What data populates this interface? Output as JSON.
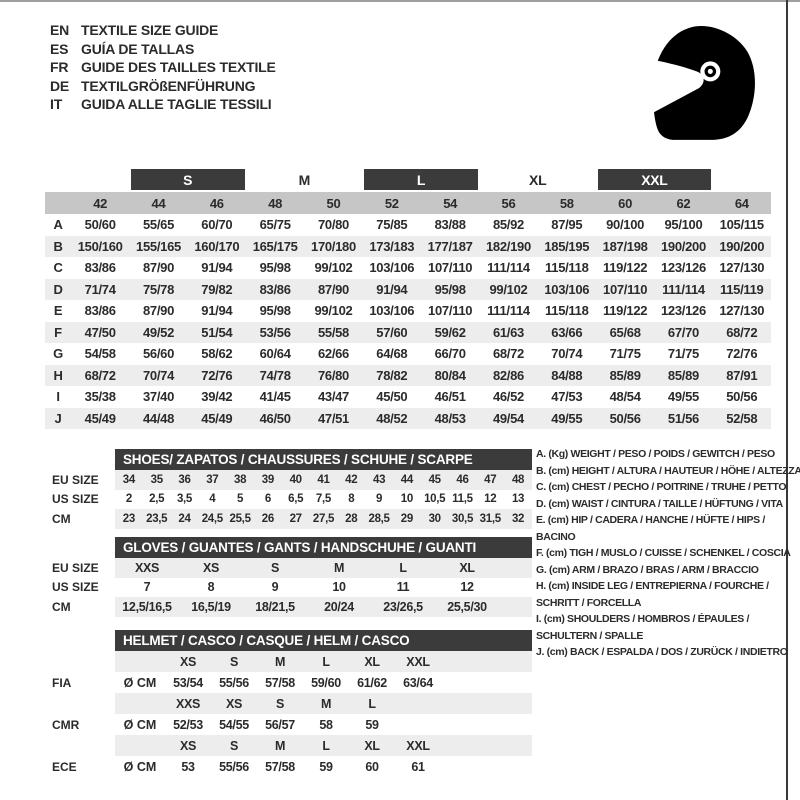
{
  "header": {
    "languages": [
      {
        "code": "EN",
        "text": "TEXTILE SIZE GUIDE"
      },
      {
        "code": "ES",
        "text": "GUÍA DE TALLAS"
      },
      {
        "code": "FR",
        "text": "GUIDE DES TAILLES TEXTILE"
      },
      {
        "code": "DE",
        "text": "TEXTILGRÖßENFÜHRUNG"
      },
      {
        "code": "IT",
        "text": "GUIDA ALLE TAGLIE TESSILI"
      }
    ],
    "icon": "racing-helmet"
  },
  "textile_table": {
    "size_groups": [
      {
        "label": "",
        "span": 1,
        "boxed": false
      },
      {
        "label": "S",
        "span": 2,
        "boxed": true
      },
      {
        "label": "M",
        "span": 2,
        "boxed": false
      },
      {
        "label": "L",
        "span": 2,
        "boxed": true
      },
      {
        "label": "XL",
        "span": 2,
        "boxed": false
      },
      {
        "label": "XXL",
        "span": 2,
        "boxed": true
      },
      {
        "label": "",
        "span": 1,
        "boxed": false
      }
    ],
    "columns": [
      "42",
      "44",
      "46",
      "48",
      "50",
      "52",
      "54",
      "56",
      "58",
      "60",
      "62",
      "64"
    ],
    "rows": [
      {
        "letter": "A",
        "values": [
          "50/60",
          "55/65",
          "60/70",
          "65/75",
          "70/80",
          "75/85",
          "83/88",
          "85/92",
          "87/95",
          "90/100",
          "95/100",
          "105/115"
        ]
      },
      {
        "letter": "B",
        "values": [
          "150/160",
          "155/165",
          "160/170",
          "165/175",
          "170/180",
          "173/183",
          "177/187",
          "182/190",
          "185/195",
          "187/198",
          "190/200",
          "190/200"
        ]
      },
      {
        "letter": "C",
        "values": [
          "83/86",
          "87/90",
          "91/94",
          "95/98",
          "99/102",
          "103/106",
          "107/110",
          "111/114",
          "115/118",
          "119/122",
          "123/126",
          "127/130"
        ]
      },
      {
        "letter": "D",
        "values": [
          "71/74",
          "75/78",
          "79/82",
          "83/86",
          "87/90",
          "91/94",
          "95/98",
          "99/102",
          "103/106",
          "107/110",
          "111/114",
          "115/119"
        ]
      },
      {
        "letter": "E",
        "values": [
          "83/86",
          "87/90",
          "91/94",
          "95/98",
          "99/102",
          "103/106",
          "107/110",
          "111/114",
          "115/118",
          "119/122",
          "123/126",
          "127/130"
        ]
      },
      {
        "letter": "F",
        "values": [
          "47/50",
          "49/52",
          "51/54",
          "53/56",
          "55/58",
          "57/60",
          "59/62",
          "61/63",
          "63/66",
          "65/68",
          "67/70",
          "68/72"
        ]
      },
      {
        "letter": "G",
        "values": [
          "54/58",
          "56/60",
          "58/62",
          "60/64",
          "62/66",
          "64/68",
          "66/70",
          "68/72",
          "70/74",
          "71/75",
          "71/75",
          "72/76"
        ]
      },
      {
        "letter": "H",
        "values": [
          "68/72",
          "70/74",
          "72/76",
          "74/78",
          "76/80",
          "78/82",
          "80/84",
          "82/86",
          "84/88",
          "85/89",
          "85/89",
          "87/91"
        ]
      },
      {
        "letter": "I",
        "values": [
          "35/38",
          "37/40",
          "39/42",
          "41/45",
          "43/47",
          "45/50",
          "46/51",
          "46/52",
          "47/53",
          "48/54",
          "49/55",
          "50/56"
        ]
      },
      {
        "letter": "J",
        "values": [
          "45/49",
          "44/48",
          "45/49",
          "46/50",
          "47/51",
          "48/52",
          "48/53",
          "49/54",
          "49/55",
          "50/56",
          "51/56",
          "52/58"
        ]
      }
    ]
  },
  "shoes_table": {
    "title": "SHOES/ ZAPATOS / CHAUSSURES / SCHUHE / SCARPE",
    "rows": [
      {
        "label": "EU SIZE",
        "shaded": true,
        "values": [
          "34",
          "35",
          "36",
          "37",
          "38",
          "39",
          "40",
          "41",
          "42",
          "43",
          "44",
          "45",
          "46",
          "47",
          "48"
        ]
      },
      {
        "label": "US SIZE",
        "shaded": false,
        "values": [
          "2",
          "2,5",
          "3,5",
          "4",
          "5",
          "6",
          "6,5",
          "7,5",
          "8",
          "9",
          "10",
          "10,5",
          "11,5",
          "12",
          "13"
        ]
      },
      {
        "label": "CM",
        "shaded": true,
        "values": [
          "23",
          "23,5",
          "24",
          "24,5",
          "25,5",
          "26",
          "27",
          "27,5",
          "28",
          "28,5",
          "29",
          "30",
          "30,5",
          "31,5",
          "32"
        ]
      }
    ]
  },
  "gloves_table": {
    "title": "GLOVES / GUANTES / GANTS / HANDSCHUHE / GUANTI",
    "rows": [
      {
        "label": "EU SIZE",
        "shaded": true,
        "values": [
          "XXS",
          "XS",
          "S",
          "M",
          "L",
          "XL"
        ]
      },
      {
        "label": "US SIZE",
        "shaded": false,
        "values": [
          "7",
          "8",
          "9",
          "10",
          "11",
          "12"
        ]
      },
      {
        "label": "CM",
        "shaded": true,
        "values": [
          "12,5/16,5",
          "16,5/19",
          "18/21,5",
          "20/24",
          "23/26,5",
          "25,5/30"
        ]
      }
    ]
  },
  "helmet_table": {
    "title": "HELMET / CASCO / CASQUE / HELM / CASCO",
    "groups": [
      {
        "label": "FIA",
        "unit": "Ø CM",
        "sizes": [
          "XS",
          "S",
          "M",
          "L",
          "XL",
          "XXL"
        ],
        "values": [
          "53/54",
          "55/56",
          "57/58",
          "59/60",
          "61/62",
          "63/64"
        ]
      },
      {
        "label": "CMR",
        "unit": "Ø CM",
        "sizes": [
          "XXS",
          "XS",
          "S",
          "M",
          "L",
          ""
        ],
        "values": [
          "52/53",
          "54/55",
          "56/57",
          "58",
          "59",
          ""
        ]
      },
      {
        "label": "ECE",
        "unit": "Ø CM",
        "sizes": [
          "XS",
          "S",
          "M",
          "L",
          "XL",
          "XXL"
        ],
        "values": [
          "53",
          "55/56",
          "57/58",
          "59",
          "60",
          "61"
        ]
      }
    ]
  },
  "legend": {
    "items": [
      "A. (Kg) WEIGHT / PESO / POIDS / GEWITCH / PESO",
      "B. (cm) HEIGHT / ALTURA / HAUTEUR / HÖHE / ALTEZZA",
      "C. (cm) CHEST / PECHO / POITRINE / TRUHE / PETTO",
      "D. (cm) WAIST / CINTURA / TAILLE / HÜFTUNG / VITA",
      "E. (cm) HIP / CADERA / HANCHE / HÜFTE / HIPS /  BACINO",
      "F. (cm) TIGH / MUSLO / CUISSE / SCHENKEL / COSCIA",
      "G. (cm) ARM  / BRAZO / BRAS / ARM / BRACCIO",
      "H. (cm) INSIDE LEG / ENTREPIERNA / FOURCHE / SCHRITT / FORCELLA",
      "I.  (cm) SHOULDERS / HOMBROS / ÉPAULES / SCHULTERN / SPALLE",
      "J. (cm) BACK / ESPALDA / DOS / ZURÜCK / INDIETRO"
    ]
  },
  "colors": {
    "dark": "#3b3b3b",
    "band": "#c6c6c6",
    "stripe": "#ededed",
    "ink": "#2b2b2b",
    "topline": "#9e9e9e",
    "rightline": "#383838"
  }
}
